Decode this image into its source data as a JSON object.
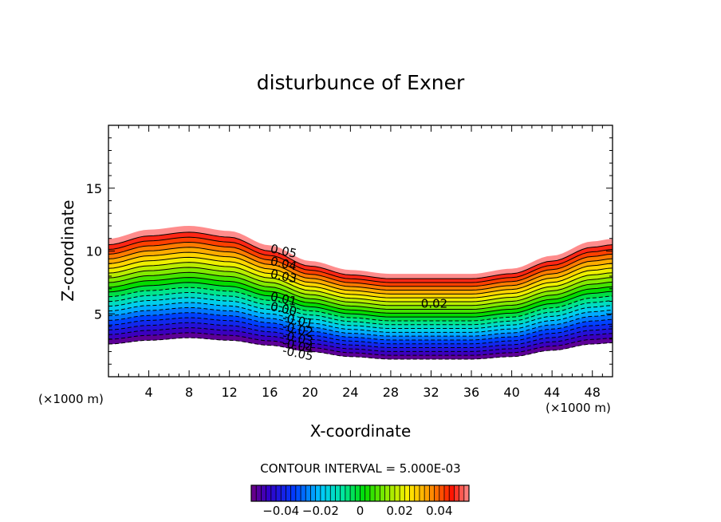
{
  "chart_data": {
    "type": "contour",
    "title": "disturbunce of Exner",
    "xlabel": "X-coordinate",
    "ylabel": "Z-coordinate",
    "x_unit": "(×1000 m)",
    "y_unit": "(×1000 m)",
    "xlim": [
      0,
      50
    ],
    "ylim": [
      0,
      20
    ],
    "x_ticks": [
      4,
      8,
      12,
      16,
      20,
      24,
      28,
      32,
      36,
      40,
      44,
      48
    ],
    "y_ticks": [
      5,
      10,
      15
    ],
    "contour_interval_text": "CONTOUR INTERVAL = 5.000E-03",
    "contour_interval": 0.005,
    "levels": [
      -0.05,
      -0.045,
      -0.04,
      -0.035,
      -0.03,
      -0.025,
      -0.02,
      -0.015,
      -0.01,
      -0.005,
      0,
      0.005,
      0.01,
      0.015,
      0.02,
      0.025,
      0.03,
      0.035,
      0.04,
      0.045,
      0.05
    ],
    "value_range": [
      -0.055,
      0.055
    ],
    "band": {
      "top_z": [
        [
          0,
          10.5
        ],
        [
          4,
          11.2
        ],
        [
          8,
          11.5
        ],
        [
          12,
          11.1
        ],
        [
          16,
          10.0
        ],
        [
          20,
          8.8
        ],
        [
          24,
          8.1
        ],
        [
          28,
          7.8
        ],
        [
          32,
          7.8
        ],
        [
          36,
          7.8
        ],
        [
          40,
          8.2
        ],
        [
          44,
          9.2
        ],
        [
          48,
          10.3
        ],
        [
          50,
          10.5
        ]
      ],
      "bottom_z": [
        [
          0,
          2.6
        ],
        [
          4,
          2.9
        ],
        [
          8,
          3.1
        ],
        [
          12,
          2.9
        ],
        [
          16,
          2.5
        ],
        [
          20,
          2.0
        ],
        [
          24,
          1.6
        ],
        [
          28,
          1.4
        ],
        [
          32,
          1.4
        ],
        [
          36,
          1.4
        ],
        [
          40,
          1.6
        ],
        [
          44,
          2.1
        ],
        [
          48,
          2.6
        ],
        [
          50,
          2.7
        ]
      ]
    },
    "contour_labels": [
      {
        "text": "0.05",
        "x": 16.0,
        "z": 9.9,
        "angle": 12
      },
      {
        "text": "0.04",
        "x": 16.0,
        "z": 8.9,
        "angle": 12
      },
      {
        "text": "0.03",
        "x": 16.0,
        "z": 7.9,
        "angle": 12
      },
      {
        "text": "0.01",
        "x": 16.0,
        "z": 6.1,
        "angle": 12
      },
      {
        "text": "0.00",
        "x": 16.0,
        "z": 5.3,
        "angle": 12
      },
      {
        "text": "0.02",
        "x": 31.0,
        "z": 5.5,
        "angle": 0
      },
      {
        "text": "-0.01",
        "x": 17.2,
        "z": 4.4,
        "angle": 12
      },
      {
        "text": "-0.02",
        "x": 17.2,
        "z": 3.7,
        "angle": 12
      },
      {
        "text": "-0.03",
        "x": 17.2,
        "z": 3.0,
        "angle": 12
      },
      {
        "text": "-0.04",
        "x": 17.2,
        "z": 2.4,
        "angle": 12
      },
      {
        "text": "-0.05",
        "x": 17.2,
        "z": 1.8,
        "angle": 12
      }
    ],
    "colorbar": {
      "range": [
        -0.055,
        0.055
      ],
      "ticks": [
        -0.04,
        -0.02,
        0,
        0.02,
        0.04
      ],
      "tick_labels": [
        "−0.04",
        "−0.02",
        "0",
        "0.02",
        "0.04"
      ]
    }
  }
}
